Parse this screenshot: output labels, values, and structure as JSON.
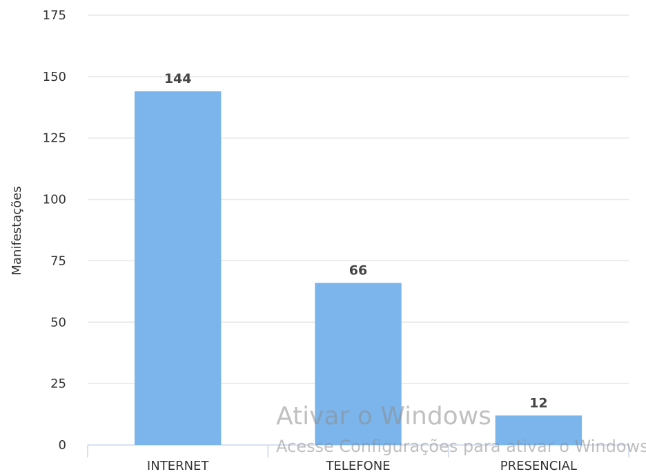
{
  "chart_data": {
    "type": "bar",
    "categories": [
      "INTERNET",
      "TELEFONE",
      "PRESENCIAL"
    ],
    "values": [
      144,
      66,
      12
    ],
    "data_labels": [
      "144",
      "66",
      "12"
    ],
    "title": "",
    "xlabel": "",
    "ylabel": "Manifestações",
    "ylim": [
      0,
      175
    ],
    "yticks": [
      0,
      25,
      50,
      75,
      100,
      125,
      150,
      175
    ],
    "ytick_labels": [
      "0",
      "25",
      "50",
      "75",
      "100",
      "125",
      "150",
      "175"
    ],
    "grid": true,
    "legend": "none",
    "bar_color": "#7cb5ec",
    "grid_color": "#e6e6e6",
    "axis_color": "#ccd6eb"
  },
  "watermark": {
    "title": "Ativar o Windows",
    "subtitle": "Acesse Configurações para ativar o Windows."
  }
}
